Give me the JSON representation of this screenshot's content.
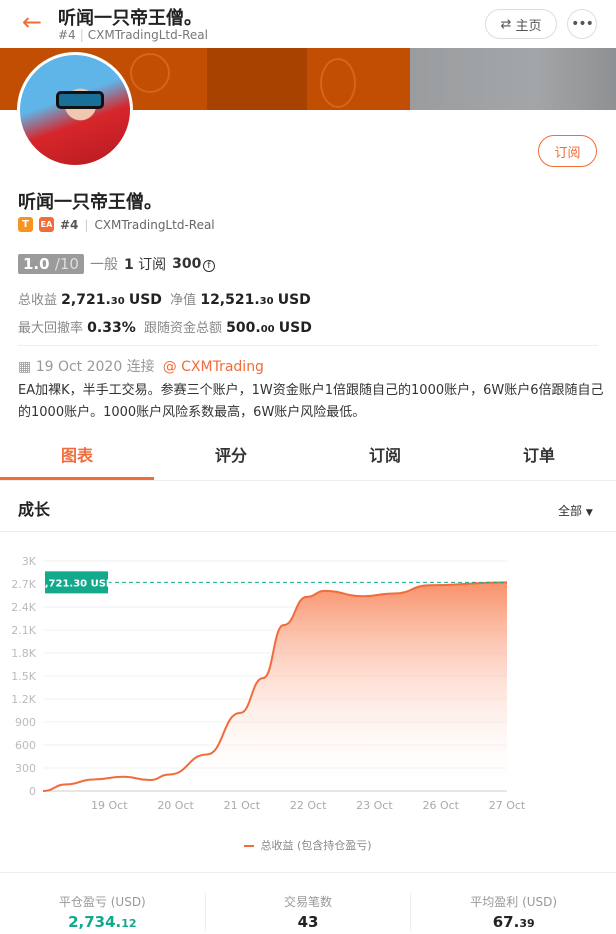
{
  "header": {
    "title": "听闻一只帝王僧。",
    "rank": "#4",
    "server": "CXMTradingLtd-Real",
    "home_label": "主页",
    "more_label": "•••"
  },
  "profile": {
    "name": "听闻一只帝王僧。",
    "badge_t": "T",
    "badge_ea": "EA",
    "rank": "#4",
    "server": "CXMTradingLtd-Real",
    "subscribe_label": "订阅",
    "score": "1.0",
    "score_max": "/10",
    "score_level": "一般",
    "subscribers": "1",
    "subscribers_label": "订阅",
    "price": "300",
    "total_profit_label": "总收益",
    "total_profit_int": "2,721.",
    "total_profit_dec": "30",
    "total_profit_unit": "USD",
    "equity_label": "净值",
    "equity_int": "12,521.",
    "equity_dec": "30",
    "equity_unit": "USD",
    "max_drawdown_label": "最大回撤率",
    "max_drawdown": "0.33%",
    "follow_funds_label": "跟随资金总额",
    "follow_funds_int": "500.",
    "follow_funds_dec": "00",
    "follow_funds_unit": "USD",
    "since": "19 Oct 2020 连接",
    "broker": "@ CXMTrading",
    "description": "EA加裸K，半手工交易。参赛三个账户，1W资金账户1倍跟随自己的1000账户，6W账户6倍跟随自己的1000账户。1000账户风险系数最高，6W账户风险最低。"
  },
  "tabs": [
    "图表",
    "评分",
    "订阅",
    "订单"
  ],
  "section": {
    "title": "成长",
    "range": "全部"
  },
  "colors": {
    "accent": "#f26b3a",
    "green": "#13a98b"
  },
  "chart_data": {
    "type": "area",
    "title": "",
    "xlabel": "",
    "ylabel": "",
    "categories": [
      "",
      "19 Oct",
      "20 Oct",
      "21 Oct",
      "22 Oct",
      "23 Oct",
      "26 Oct",
      "27 Oct"
    ],
    "ylim": [
      0,
      3000
    ],
    "yticks": [
      "0",
      "300",
      "600",
      "900",
      "1.2K",
      "1.5K",
      "1.8K",
      "2.1K",
      "2.4K",
      "2.7K",
      "3K"
    ],
    "grid": true,
    "current_label": "2,721.30 USD",
    "current_value": 2721.3,
    "series": [
      {
        "name": "总收益 (包含持仓盈亏)",
        "points": [
          [
            0,
            0
          ],
          [
            0.35,
            87
          ],
          [
            0.76,
            150
          ],
          [
            1.21,
            186
          ],
          [
            1.61,
            143
          ],
          [
            1.91,
            216
          ],
          [
            2.47,
            476
          ],
          [
            2.97,
            1017
          ],
          [
            3.32,
            1472
          ],
          [
            3.63,
            2164
          ],
          [
            3.98,
            2532
          ],
          [
            4.25,
            2610
          ],
          [
            4.83,
            2541
          ],
          [
            5.29,
            2576
          ],
          [
            5.84,
            2684
          ],
          [
            7,
            2721.3
          ]
        ]
      }
    ],
    "legend": "bottom"
  },
  "stats": [
    {
      "label": "平仓盈亏 (USD)",
      "int": "2,734.",
      "dec": "12",
      "color": "#13a98b"
    },
    {
      "label": "交易笔数",
      "int": "43",
      "dec": ""
    },
    {
      "label": "平均盈利 (USD)",
      "int": "67.",
      "dec": "39"
    }
  ]
}
